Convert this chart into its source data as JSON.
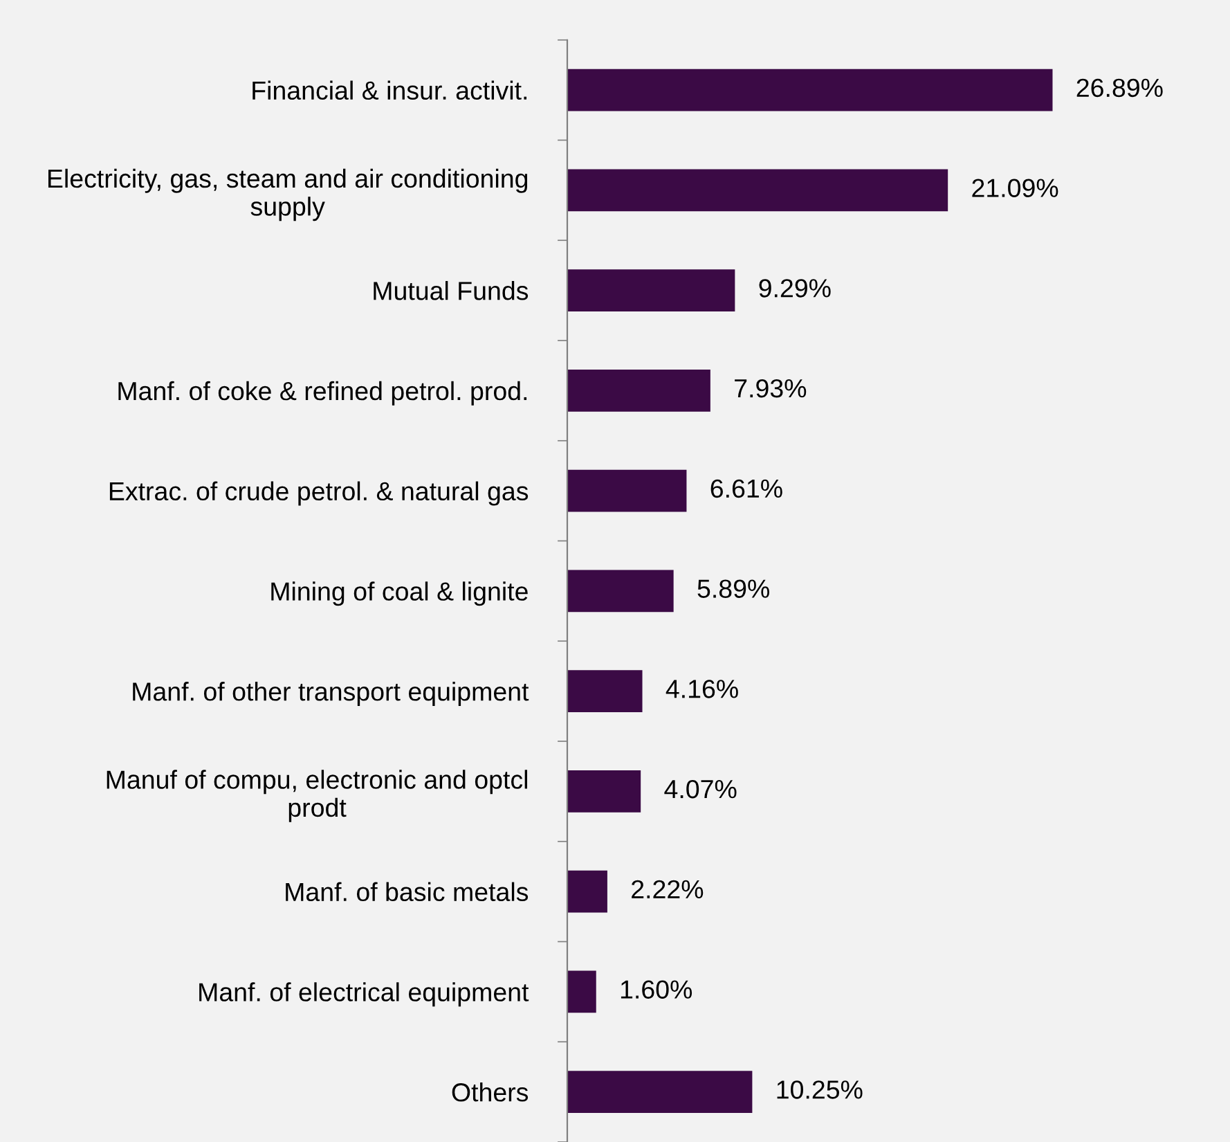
{
  "chart_data": {
    "type": "bar",
    "orientation": "horizontal",
    "categories": [
      "Financial & insur. activit.",
      "Electricity, gas, steam and air conditioning\nsupply",
      "Mutual Funds",
      "Manf. of coke & refined petrol. prod.",
      "Extrac. of crude petrol. & natural gas",
      "Mining of coal & lignite",
      "Manf. of other transport equipment",
      "Manuf of compu, electronic and optcl\nprodt",
      "Manf. of basic metals",
      "Manf. of electrical equipment",
      "Others"
    ],
    "values": [
      26.89,
      21.09,
      9.29,
      7.93,
      6.61,
      5.89,
      4.16,
      4.07,
      2.22,
      1.6,
      10.25
    ],
    "value_labels": [
      "26.89%",
      "21.09%",
      "9.29%",
      "7.93%",
      "6.61%",
      "5.89%",
      "4.16%",
      "4.07%",
      "2.22%",
      "1.60%",
      "10.25%"
    ],
    "color": "#3b0a45",
    "grid": false,
    "legend": false
  }
}
